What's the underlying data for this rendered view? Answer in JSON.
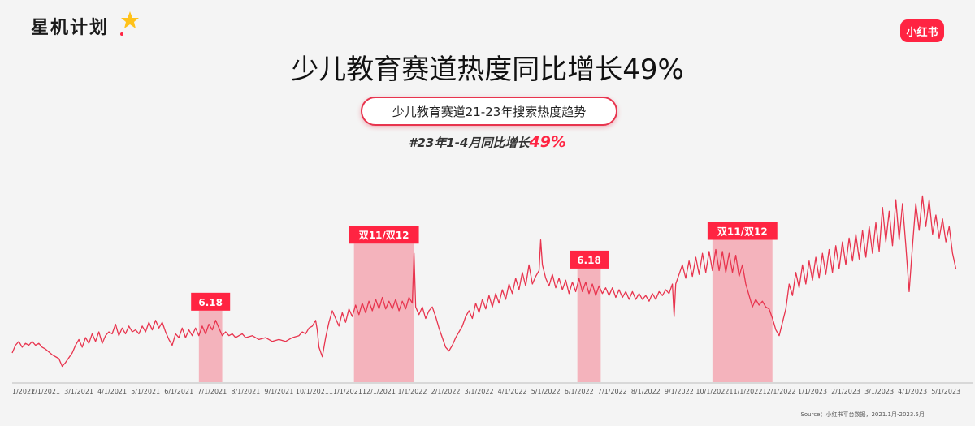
{
  "header": {
    "logo_text": "星机计划",
    "brand_badge": "小红书",
    "title": "少儿教育赛道热度同比增长49%",
    "subtitle_pill": "少儿教育赛道21-23年搜索热度趋势",
    "growth_note_prefix": "#23年1-4月同比增长",
    "growth_note_value": "49%"
  },
  "source_note": "Source：小红书平台数据，2021.1月-2023.5月",
  "colors": {
    "accent": "#ff2442",
    "line": "#e8344e",
    "band": "#f4b3bc",
    "label_bg": "#ff2442"
  },
  "chart_data": {
    "type": "line",
    "title": "少儿教育赛道21-23年搜索热度趋势",
    "x_tick_labels": [
      "1/2021",
      "2/1/2021",
      "3/1/2021",
      "4/1/2021",
      "5/1/2021",
      "6/1/2021",
      "7/1/2021",
      "8/1/2021",
      "9/1/2021",
      "10/1/2021",
      "11/1/2021",
      "12/1/2021",
      "1/1/2022",
      "2/1/2022",
      "3/1/2022",
      "4/1/2022",
      "5/1/2022",
      "6/1/2022",
      "7/1/2022",
      "8/1/2022",
      "9/1/2022",
      "10/1/2022",
      "11/1/2022",
      "12/1/2022",
      "1/1/2023",
      "2/1/2023",
      "3/1/2023",
      "4/1/2023",
      "5/1/2023"
    ],
    "x_range_months": [
      0,
      28.8
    ],
    "y_range": [
      0,
      100
    ],
    "grid": false,
    "series": [
      {
        "points": [
          [
            0.0,
            14
          ],
          [
            0.1,
            18
          ],
          [
            0.2,
            20
          ],
          [
            0.3,
            17
          ],
          [
            0.4,
            19
          ],
          [
            0.5,
            18
          ],
          [
            0.6,
            20
          ],
          [
            0.7,
            18
          ],
          [
            0.8,
            19
          ],
          [
            0.9,
            17
          ],
          [
            1.0,
            16
          ],
          [
            1.2,
            13
          ],
          [
            1.4,
            11
          ],
          [
            1.5,
            7
          ],
          [
            1.6,
            9
          ],
          [
            1.8,
            14
          ],
          [
            1.9,
            18
          ],
          [
            2.0,
            21
          ],
          [
            2.1,
            17
          ],
          [
            2.2,
            22
          ],
          [
            2.3,
            19
          ],
          [
            2.4,
            24
          ],
          [
            2.5,
            20
          ],
          [
            2.6,
            25
          ],
          [
            2.7,
            19
          ],
          [
            2.8,
            23
          ],
          [
            2.9,
            25
          ],
          [
            3.0,
            24
          ],
          [
            3.1,
            29
          ],
          [
            3.2,
            23
          ],
          [
            3.3,
            27
          ],
          [
            3.4,
            24
          ],
          [
            3.5,
            28
          ],
          [
            3.6,
            25
          ],
          [
            3.7,
            26
          ],
          [
            3.8,
            24
          ],
          [
            3.9,
            28
          ],
          [
            4.0,
            25
          ],
          [
            4.1,
            30
          ],
          [
            4.2,
            26
          ],
          [
            4.3,
            31
          ],
          [
            4.4,
            27
          ],
          [
            4.5,
            30
          ],
          [
            4.6,
            25
          ],
          [
            4.7,
            21
          ],
          [
            4.8,
            18
          ],
          [
            4.9,
            24
          ],
          [
            5.0,
            22
          ],
          [
            5.1,
            27
          ],
          [
            5.2,
            22
          ],
          [
            5.3,
            26
          ],
          [
            5.4,
            23
          ],
          [
            5.5,
            27
          ],
          [
            5.6,
            23
          ],
          [
            5.7,
            28
          ],
          [
            5.8,
            24
          ],
          [
            5.9,
            29
          ],
          [
            6.0,
            26
          ],
          [
            6.1,
            31
          ],
          [
            6.2,
            27
          ],
          [
            6.3,
            23
          ],
          [
            6.4,
            25
          ],
          [
            6.5,
            23
          ],
          [
            6.6,
            24
          ],
          [
            6.7,
            22
          ],
          [
            6.8,
            23
          ],
          [
            6.9,
            24
          ],
          [
            7.0,
            22
          ],
          [
            7.2,
            23
          ],
          [
            7.4,
            21
          ],
          [
            7.6,
            22
          ],
          [
            7.8,
            20
          ],
          [
            8.0,
            21
          ],
          [
            8.2,
            20
          ],
          [
            8.4,
            22
          ],
          [
            8.6,
            23
          ],
          [
            8.7,
            25
          ],
          [
            8.8,
            24
          ],
          [
            8.9,
            27
          ],
          [
            9.0,
            28
          ],
          [
            9.1,
            31
          ],
          [
            9.15,
            26
          ],
          [
            9.2,
            17
          ],
          [
            9.3,
            12
          ],
          [
            9.4,
            22
          ],
          [
            9.5,
            30
          ],
          [
            9.6,
            36
          ],
          [
            9.7,
            32
          ],
          [
            9.8,
            28
          ],
          [
            9.9,
            35
          ],
          [
            10.0,
            30
          ],
          [
            10.1,
            37
          ],
          [
            10.2,
            33
          ],
          [
            10.3,
            39
          ],
          [
            10.4,
            34
          ],
          [
            10.5,
            40
          ],
          [
            10.6,
            35
          ],
          [
            10.7,
            41
          ],
          [
            10.8,
            36
          ],
          [
            10.9,
            42
          ],
          [
            11.0,
            37
          ],
          [
            11.1,
            43
          ],
          [
            11.2,
            37
          ],
          [
            11.3,
            41
          ],
          [
            11.4,
            37
          ],
          [
            11.5,
            42
          ],
          [
            11.6,
            36
          ],
          [
            11.7,
            41
          ],
          [
            11.8,
            37
          ],
          [
            11.9,
            43
          ],
          [
            12.0,
            40
          ],
          [
            12.05,
            66
          ],
          [
            12.1,
            38
          ],
          [
            12.2,
            34
          ],
          [
            12.3,
            38
          ],
          [
            12.4,
            32
          ],
          [
            12.5,
            36
          ],
          [
            12.6,
            38
          ],
          [
            12.7,
            33
          ],
          [
            12.8,
            27
          ],
          [
            12.9,
            22
          ],
          [
            13.0,
            17
          ],
          [
            13.1,
            15
          ],
          [
            13.2,
            18
          ],
          [
            13.3,
            22
          ],
          [
            13.4,
            25
          ],
          [
            13.5,
            28
          ],
          [
            13.6,
            33
          ],
          [
            13.7,
            36
          ],
          [
            13.8,
            32
          ],
          [
            13.9,
            40
          ],
          [
            14.0,
            35
          ],
          [
            14.1,
            42
          ],
          [
            14.2,
            37
          ],
          [
            14.3,
            44
          ],
          [
            14.4,
            38
          ],
          [
            14.5,
            45
          ],
          [
            14.6,
            40
          ],
          [
            14.7,
            47
          ],
          [
            14.8,
            42
          ],
          [
            14.9,
            50
          ],
          [
            15.0,
            45
          ],
          [
            15.1,
            53
          ],
          [
            15.2,
            47
          ],
          [
            15.3,
            56
          ],
          [
            15.4,
            49
          ],
          [
            15.5,
            60
          ],
          [
            15.6,
            50
          ],
          [
            15.7,
            54
          ],
          [
            15.8,
            57
          ],
          [
            15.85,
            73
          ],
          [
            15.9,
            60
          ],
          [
            16.0,
            53
          ],
          [
            16.1,
            49
          ],
          [
            16.2,
            55
          ],
          [
            16.3,
            48
          ],
          [
            16.4,
            53
          ],
          [
            16.5,
            47
          ],
          [
            16.6,
            52
          ],
          [
            16.7,
            45
          ],
          [
            16.8,
            51
          ],
          [
            16.9,
            46
          ],
          [
            17.0,
            53
          ],
          [
            17.1,
            46
          ],
          [
            17.2,
            51
          ],
          [
            17.3,
            45
          ],
          [
            17.4,
            50
          ],
          [
            17.5,
            44
          ],
          [
            17.6,
            49
          ],
          [
            17.7,
            45
          ],
          [
            17.8,
            48
          ],
          [
            17.9,
            44
          ],
          [
            18.0,
            48
          ],
          [
            18.1,
            43
          ],
          [
            18.2,
            47
          ],
          [
            18.3,
            43
          ],
          [
            18.4,
            46
          ],
          [
            18.5,
            42
          ],
          [
            18.6,
            46
          ],
          [
            18.7,
            42
          ],
          [
            18.8,
            45
          ],
          [
            18.9,
            42
          ],
          [
            19.0,
            44
          ],
          [
            19.1,
            41
          ],
          [
            19.2,
            45
          ],
          [
            19.3,
            42
          ],
          [
            19.4,
            46
          ],
          [
            19.5,
            44
          ],
          [
            19.6,
            47
          ],
          [
            19.7,
            45
          ],
          [
            19.8,
            50
          ],
          [
            19.85,
            33
          ],
          [
            19.9,
            50
          ],
          [
            20.0,
            55
          ],
          [
            20.1,
            60
          ],
          [
            20.2,
            53
          ],
          [
            20.3,
            62
          ],
          [
            20.4,
            54
          ],
          [
            20.5,
            64
          ],
          [
            20.6,
            55
          ],
          [
            20.7,
            66
          ],
          [
            20.8,
            56
          ],
          [
            20.9,
            67
          ],
          [
            21.0,
            57
          ],
          [
            21.1,
            68
          ],
          [
            21.2,
            57
          ],
          [
            21.3,
            67
          ],
          [
            21.4,
            56
          ],
          [
            21.5,
            66
          ],
          [
            21.6,
            56
          ],
          [
            21.7,
            65
          ],
          [
            21.8,
            54
          ],
          [
            21.9,
            60
          ],
          [
            22.0,
            50
          ],
          [
            22.1,
            44
          ],
          [
            22.2,
            38
          ],
          [
            22.3,
            42
          ],
          [
            22.4,
            39
          ],
          [
            22.5,
            41
          ],
          [
            22.6,
            38
          ],
          [
            22.7,
            37
          ],
          [
            22.8,
            32
          ],
          [
            22.9,
            26
          ],
          [
            23.0,
            23
          ],
          [
            23.1,
            30
          ],
          [
            23.2,
            37
          ],
          [
            23.3,
            50
          ],
          [
            23.4,
            44
          ],
          [
            23.5,
            56
          ],
          [
            23.6,
            48
          ],
          [
            23.7,
            60
          ],
          [
            23.8,
            50
          ],
          [
            23.9,
            62
          ],
          [
            24.0,
            52
          ],
          [
            24.1,
            64
          ],
          [
            24.2,
            53
          ],
          [
            24.3,
            66
          ],
          [
            24.4,
            55
          ],
          [
            24.5,
            68
          ],
          [
            24.6,
            56
          ],
          [
            24.7,
            70
          ],
          [
            24.8,
            58
          ],
          [
            24.9,
            72
          ],
          [
            25.0,
            60
          ],
          [
            25.1,
            74
          ],
          [
            25.2,
            62
          ],
          [
            25.3,
            76
          ],
          [
            25.4,
            63
          ],
          [
            25.5,
            78
          ],
          [
            25.6,
            64
          ],
          [
            25.7,
            80
          ],
          [
            25.8,
            66
          ],
          [
            25.9,
            82
          ],
          [
            26.0,
            67
          ],
          [
            26.1,
            90
          ],
          [
            26.2,
            72
          ],
          [
            26.3,
            88
          ],
          [
            26.4,
            70
          ],
          [
            26.5,
            94
          ],
          [
            26.6,
            73
          ],
          [
            26.7,
            92
          ],
          [
            26.8,
            70
          ],
          [
            26.9,
            46
          ],
          [
            27.0,
            70
          ],
          [
            27.1,
            92
          ],
          [
            27.2,
            78
          ],
          [
            27.3,
            96
          ],
          [
            27.4,
            80
          ],
          [
            27.5,
            94
          ],
          [
            27.6,
            76
          ],
          [
            27.7,
            86
          ],
          [
            27.8,
            74
          ],
          [
            27.9,
            84
          ],
          [
            28.0,
            72
          ],
          [
            28.1,
            80
          ],
          [
            28.2,
            66
          ],
          [
            28.3,
            58
          ]
        ]
      }
    ],
    "annotations": [
      {
        "label": "6.18",
        "start": 5.6,
        "end": 6.3
      },
      {
        "label": "双11/双12",
        "start": 10.25,
        "end": 12.05
      },
      {
        "label": "6.18",
        "start": 16.95,
        "end": 17.65
      },
      {
        "label": "双11/双12",
        "start": 21.0,
        "end": 22.8
      }
    ]
  }
}
